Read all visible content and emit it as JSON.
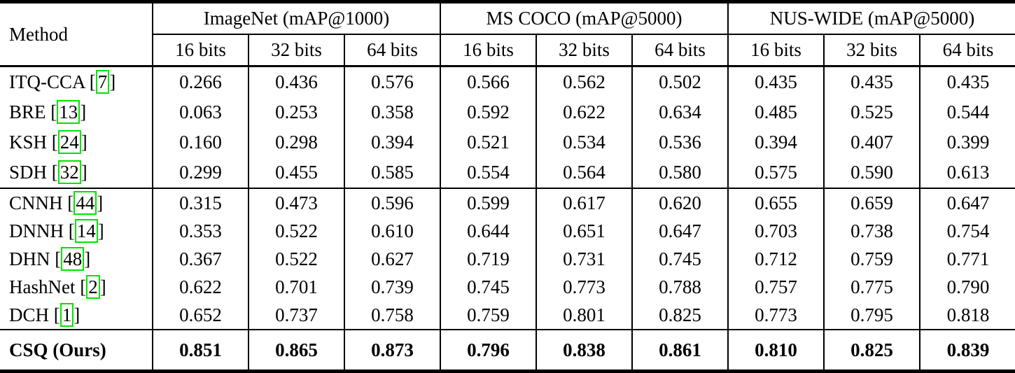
{
  "colors": {
    "citation_box_green": "#00e400",
    "rule_black": "#000000",
    "background_white": "#ffffff"
  },
  "table": {
    "method_header": "Method",
    "citation_prefix": " [",
    "citation_suffix": "]",
    "column_groups": [
      {
        "label": "ImageNet (mAP@1000)",
        "sub": [
          "16 bits",
          "32 bits",
          "64 bits"
        ]
      },
      {
        "label": "MS COCO (mAP@5000)",
        "sub": [
          "16 bits",
          "32 bits",
          "64 bits"
        ]
      },
      {
        "label": "NUS-WIDE (mAP@5000)",
        "sub": [
          "16 bits",
          "32 bits",
          "64 bits"
        ]
      }
    ],
    "sections": [
      {
        "name": "shallow-methods",
        "bold": false,
        "rows": [
          {
            "method": "ITQ-CCA",
            "citation": "7",
            "values": [
              "0.266",
              "0.436",
              "0.576",
              "0.566",
              "0.562",
              "0.502",
              "0.435",
              "0.435",
              "0.435"
            ]
          },
          {
            "method": "BRE",
            "citation": "13",
            "values": [
              "0.063",
              "0.253",
              "0.358",
              "0.592",
              "0.622",
              "0.634",
              "0.485",
              "0.525",
              "0.544"
            ]
          },
          {
            "method": "KSH",
            "citation": "24",
            "values": [
              "0.160",
              "0.298",
              "0.394",
              "0.521",
              "0.534",
              "0.536",
              "0.394",
              "0.407",
              "0.399"
            ]
          },
          {
            "method": "SDH",
            "citation": "32",
            "values": [
              "0.299",
              "0.455",
              "0.585",
              "0.554",
              "0.564",
              "0.580",
              "0.575",
              "0.590",
              "0.613"
            ]
          }
        ]
      },
      {
        "name": "deep-methods",
        "bold": false,
        "rows": [
          {
            "method": "CNNH",
            "citation": "44",
            "values": [
              "0.315",
              "0.473",
              "0.596",
              "0.599",
              "0.617",
              "0.620",
              "0.655",
              "0.659",
              "0.647"
            ]
          },
          {
            "method": "DNNH",
            "citation": "14",
            "values": [
              "0.353",
              "0.522",
              "0.610",
              "0.644",
              "0.651",
              "0.647",
              "0.703",
              "0.738",
              "0.754"
            ]
          },
          {
            "method": "DHN",
            "citation": "48",
            "values": [
              "0.367",
              "0.522",
              "0.627",
              "0.719",
              "0.731",
              "0.745",
              "0.712",
              "0.759",
              "0.771"
            ]
          },
          {
            "method": "HashNet",
            "citation": "2",
            "values": [
              "0.622",
              "0.701",
              "0.739",
              "0.745",
              "0.773",
              "0.788",
              "0.757",
              "0.775",
              "0.790"
            ]
          },
          {
            "method": "DCH",
            "citation": "1",
            "values": [
              "0.652",
              "0.737",
              "0.758",
              "0.759",
              "0.801",
              "0.825",
              "0.773",
              "0.795",
              "0.818"
            ]
          }
        ]
      },
      {
        "name": "ours",
        "bold": true,
        "rows": [
          {
            "method": "CSQ (Ours)",
            "citation": null,
            "values": [
              "0.851",
              "0.865",
              "0.873",
              "0.796",
              "0.838",
              "0.861",
              "0.810",
              "0.825",
              "0.839"
            ]
          }
        ]
      }
    ]
  }
}
